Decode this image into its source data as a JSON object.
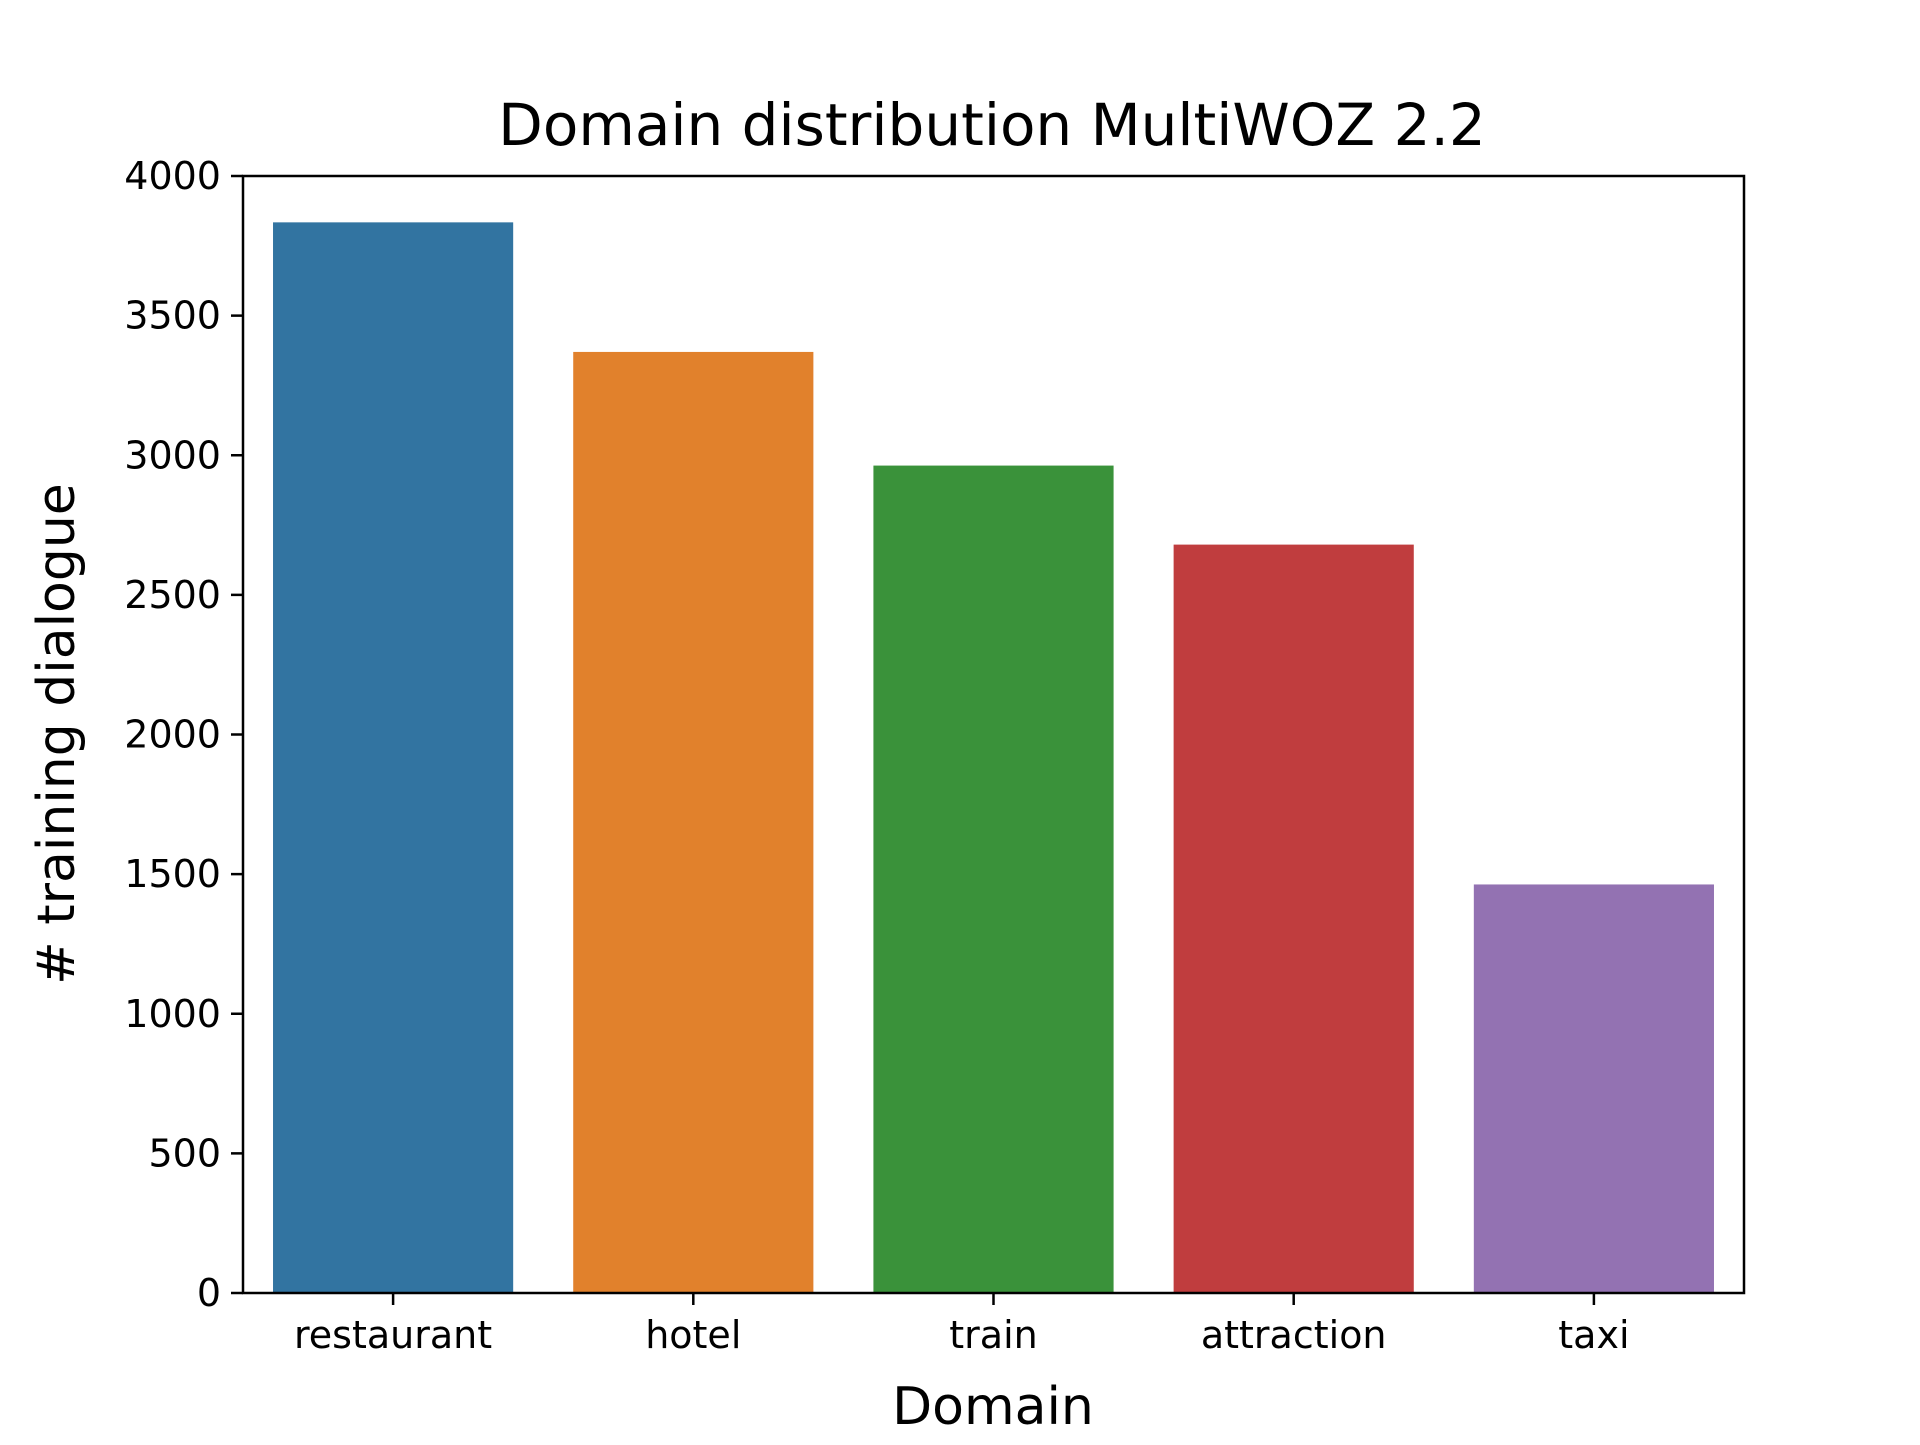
{
  "chart_data": {
    "type": "bar",
    "title": "Domain distribution MultiWOZ 2.2",
    "xlabel": "Domain",
    "ylabel": "# training dialogue",
    "categories": [
      "restaurant",
      "hotel",
      "train",
      "attraction",
      "taxi"
    ],
    "values": [
      3834,
      3370,
      2963,
      2680,
      1463
    ],
    "colors": [
      "#3274a1",
      "#e1812c",
      "#3a923a",
      "#c03d3e",
      "#9372b2"
    ],
    "ylim": [
      0,
      4000
    ],
    "yticks": [
      0,
      500,
      1000,
      1500,
      2000,
      2500,
      3000,
      3500,
      4000
    ],
    "grid": false,
    "legend": "none"
  }
}
